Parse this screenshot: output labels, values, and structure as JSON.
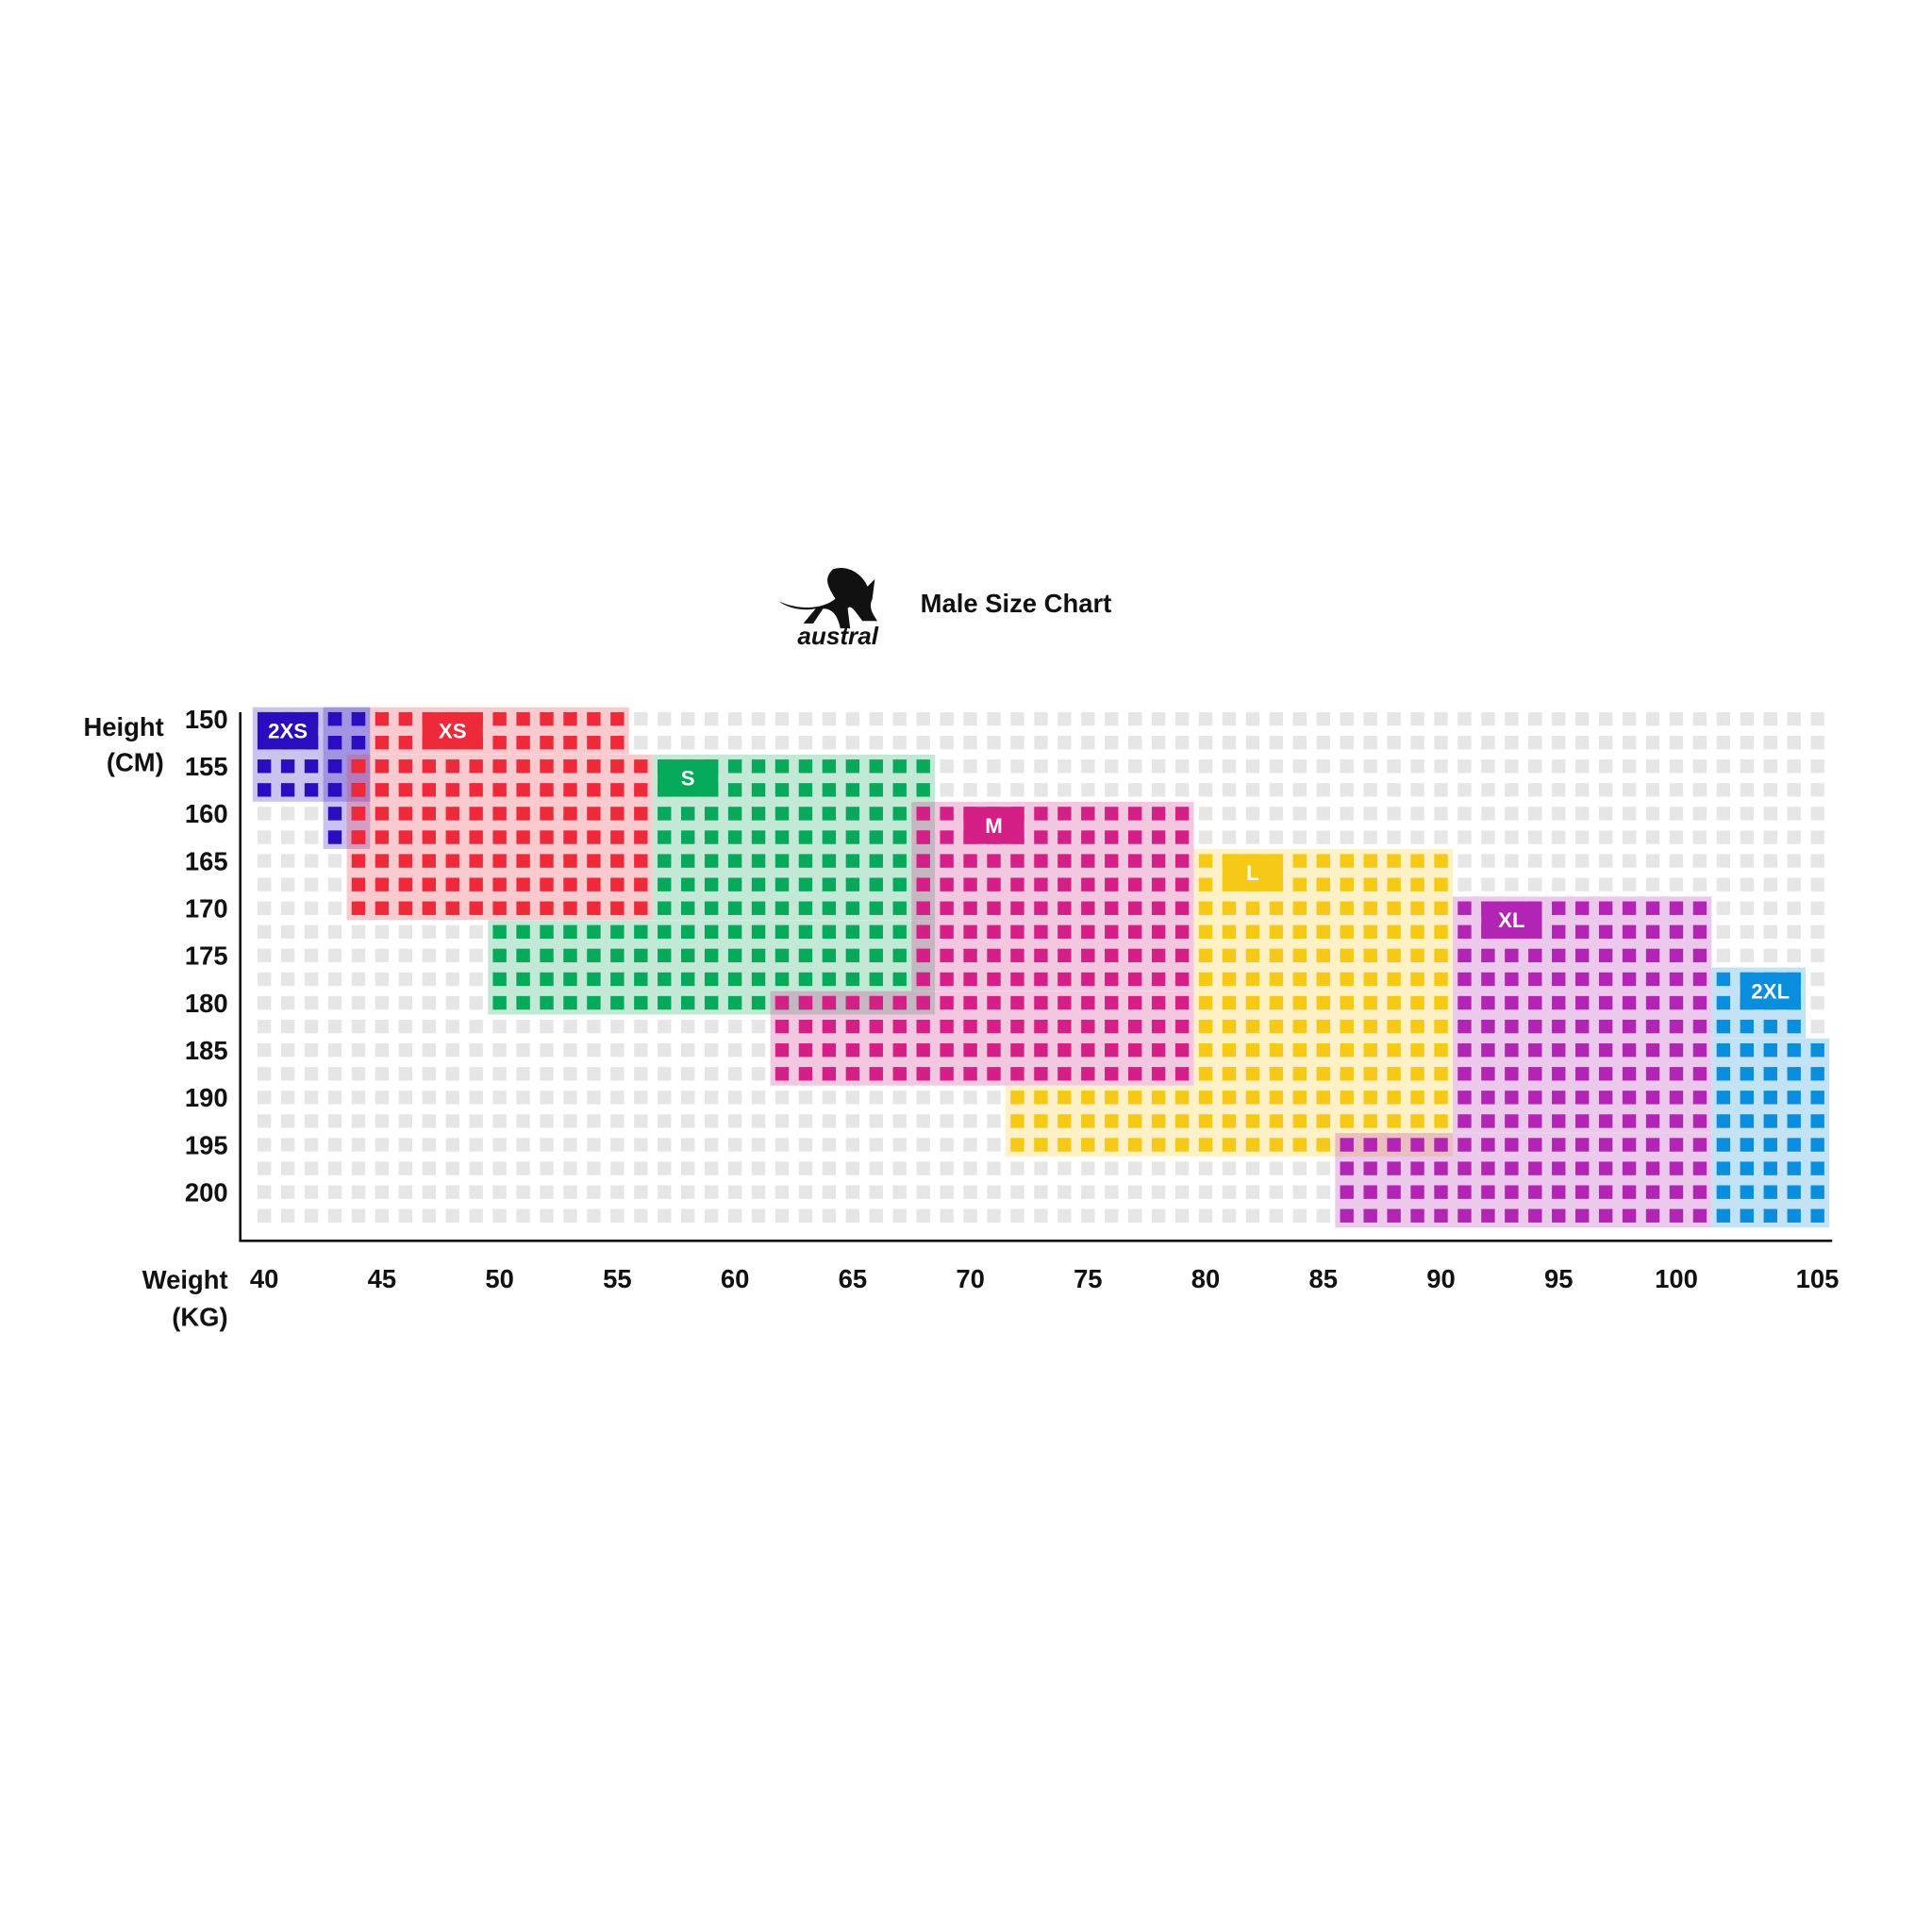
{
  "logo": {
    "text": "austral"
  },
  "chart_data": {
    "type": "heatmap",
    "title": "Male Size Chart",
    "ylabel_lines": [
      "Height",
      "(CM)"
    ],
    "xlabel_lines": [
      "Weight",
      "(KG)"
    ],
    "xlim": [
      40,
      106
    ],
    "ylim": [
      150,
      202.5
    ],
    "x_step": 1,
    "y_step": 2.5,
    "x_ticks": [
      40,
      45,
      50,
      55,
      60,
      65,
      70,
      75,
      80,
      85,
      90,
      95,
      100,
      105
    ],
    "x_tick_labels": [
      "40",
      "45",
      "50",
      "55",
      "60",
      "65",
      "70",
      "75",
      "80",
      "85",
      "90",
      "95",
      "100",
      "105"
    ],
    "y_ticks": [
      150,
      155,
      160,
      165,
      170,
      175,
      180,
      185,
      190,
      195,
      200
    ],
    "y_tick_labels": [
      "150",
      "155",
      "160",
      "165",
      "170",
      "175",
      "180",
      "185",
      "190",
      "195",
      "200"
    ],
    "empty_color": "#e6e6e6",
    "sizes": [
      {
        "name": "2XS",
        "color": "#2a0dbf",
        "label_at": [
          40,
          150
        ],
        "regions": [
          [
            40,
            44,
            150,
            157.5
          ],
          [
            43,
            44,
            150,
            162.5
          ]
        ]
      },
      {
        "name": "XS",
        "color": "#ee2a3a",
        "label_at": [
          47,
          150
        ],
        "regions": [
          [
            45,
            55,
            150,
            152.5
          ],
          [
            44,
            56,
            155,
            170
          ]
        ]
      },
      {
        "name": "S",
        "color": "#06a95a",
        "label_at": [
          57,
          155
        ],
        "regions": [
          [
            57,
            68,
            155,
            170
          ],
          [
            50,
            68,
            172.5,
            180
          ]
        ]
      },
      {
        "name": "M",
        "color": "#d41f86",
        "label_at": [
          70,
          160
        ],
        "regions": [
          [
            68,
            79,
            160,
            177.5
          ],
          [
            62,
            79,
            180,
            187.5
          ]
        ]
      },
      {
        "name": "L",
        "color": "#f6c917",
        "label_at": [
          81,
          165
        ],
        "regions": [
          [
            80,
            90,
            165,
            187.5
          ],
          [
            72,
            90,
            190,
            195
          ]
        ]
      },
      {
        "name": "XL",
        "color": "#b224b4",
        "label_at": [
          92,
          170
        ],
        "regions": [
          [
            91,
            101,
            170,
            192.5
          ],
          [
            86,
            101,
            195,
            202.5
          ]
        ]
      },
      {
        "name": "2XL",
        "color": "#0a8ddc",
        "label_at": [
          103,
          177.5
        ],
        "regions": [
          [
            102,
            105,
            177.5,
            182.5
          ],
          [
            102,
            106,
            185,
            202.5
          ]
        ]
      }
    ]
  }
}
